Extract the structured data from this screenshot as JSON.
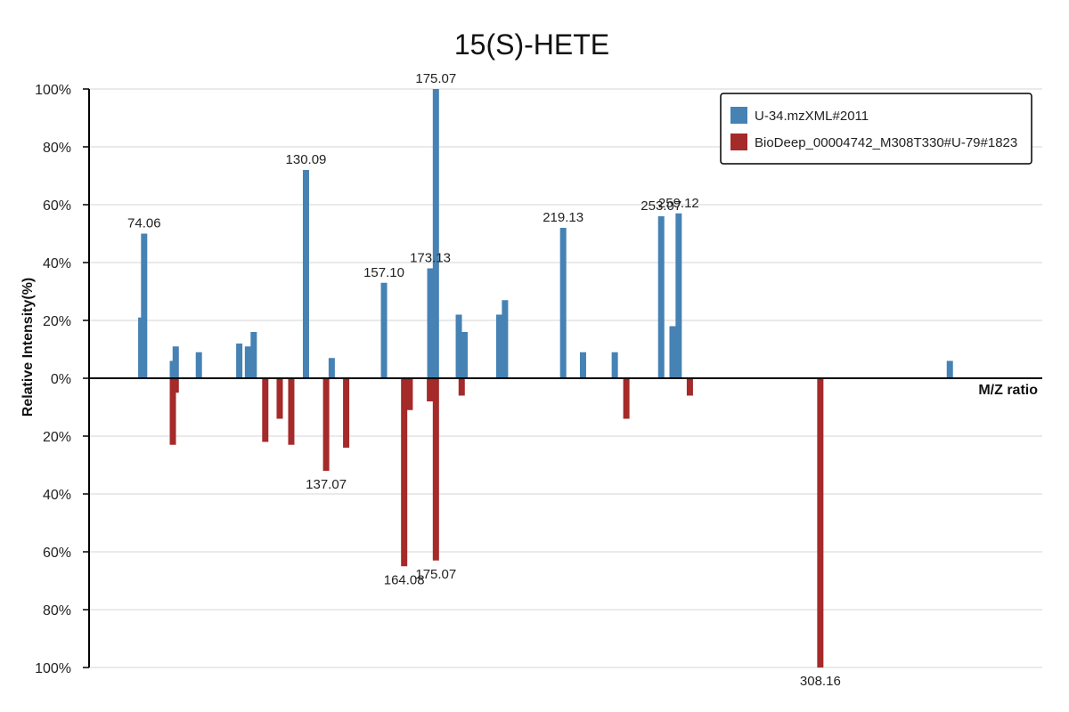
{
  "chart_data": {
    "type": "bar",
    "title": "15(S)-HETE",
    "xlabel": "M/Z ratio",
    "ylabel": "Relative Intensity(%)",
    "ylim": [
      -100,
      100
    ],
    "xlim": [
      55,
      385
    ],
    "y_ticks": [
      {
        "value": 100,
        "label": "100%"
      },
      {
        "value": 80,
        "label": "80%"
      },
      {
        "value": 60,
        "label": "60%"
      },
      {
        "value": 40,
        "label": "40%"
      },
      {
        "value": 20,
        "label": "20%"
      },
      {
        "value": 0,
        "label": "0%"
      },
      {
        "value": -20,
        "label": "20%"
      },
      {
        "value": -40,
        "label": "40%"
      },
      {
        "value": -60,
        "label": "60%"
      },
      {
        "value": -80,
        "label": "80%"
      },
      {
        "value": -100,
        "label": "100%"
      }
    ],
    "grid": true,
    "legend_position": "top-right",
    "series": [
      {
        "name": "U-34.mzXML#2011",
        "color": "#4682b4",
        "direction": "up",
        "points": [
          {
            "mz": 73.06,
            "value": 21,
            "label": ""
          },
          {
            "mz": 74.06,
            "value": 50,
            "label": "74.06"
          },
          {
            "mz": 84.0,
            "value": 6,
            "label": ""
          },
          {
            "mz": 85.0,
            "value": 11,
            "label": ""
          },
          {
            "mz": 93.0,
            "value": 9,
            "label": ""
          },
          {
            "mz": 107.0,
            "value": 12,
            "label": ""
          },
          {
            "mz": 110.0,
            "value": 11,
            "label": ""
          },
          {
            "mz": 112.0,
            "value": 16,
            "label": ""
          },
          {
            "mz": 130.09,
            "value": 72,
            "label": "130.09"
          },
          {
            "mz": 139.0,
            "value": 7,
            "label": ""
          },
          {
            "mz": 157.1,
            "value": 33,
            "label": "157.10"
          },
          {
            "mz": 173.13,
            "value": 38,
            "label": "173.13"
          },
          {
            "mz": 175.07,
            "value": 100,
            "label": "175.07"
          },
          {
            "mz": 183.0,
            "value": 22,
            "label": ""
          },
          {
            "mz": 185.0,
            "value": 16,
            "label": ""
          },
          {
            "mz": 197.0,
            "value": 22,
            "label": ""
          },
          {
            "mz": 199.0,
            "value": 27,
            "label": ""
          },
          {
            "mz": 219.13,
            "value": 52,
            "label": "219.13"
          },
          {
            "mz": 226.0,
            "value": 9,
            "label": ""
          },
          {
            "mz": 237.0,
            "value": 9,
            "label": ""
          },
          {
            "mz": 253.07,
            "value": 56,
            "label": "253.07"
          },
          {
            "mz": 257.0,
            "value": 18,
            "label": ""
          },
          {
            "mz": 259.12,
            "value": 57,
            "label": "259.12"
          },
          {
            "mz": 353.0,
            "value": 6,
            "label": ""
          }
        ]
      },
      {
        "name": "BioDeep_00004742_M308T330#U-79#1823",
        "color": "#a52a2a",
        "direction": "down",
        "points": [
          {
            "mz": 84.0,
            "value": 23,
            "label": ""
          },
          {
            "mz": 85.0,
            "value": 5,
            "label": ""
          },
          {
            "mz": 116.0,
            "value": 22,
            "label": ""
          },
          {
            "mz": 121.0,
            "value": 14,
            "label": ""
          },
          {
            "mz": 125.0,
            "value": 23,
            "label": ""
          },
          {
            "mz": 137.07,
            "value": 32,
            "label": "137.07"
          },
          {
            "mz": 144.0,
            "value": 24,
            "label": ""
          },
          {
            "mz": 164.08,
            "value": 65,
            "label": "164.08"
          },
          {
            "mz": 166.0,
            "value": 11,
            "label": ""
          },
          {
            "mz": 173.0,
            "value": 8,
            "label": ""
          },
          {
            "mz": 175.07,
            "value": 63,
            "label": "175.07"
          },
          {
            "mz": 184.0,
            "value": 6,
            "label": ""
          },
          {
            "mz": 241.0,
            "value": 14,
            "label": ""
          },
          {
            "mz": 263.0,
            "value": 6,
            "label": ""
          },
          {
            "mz": 308.16,
            "value": 100,
            "label": "308.16"
          }
        ]
      }
    ]
  }
}
